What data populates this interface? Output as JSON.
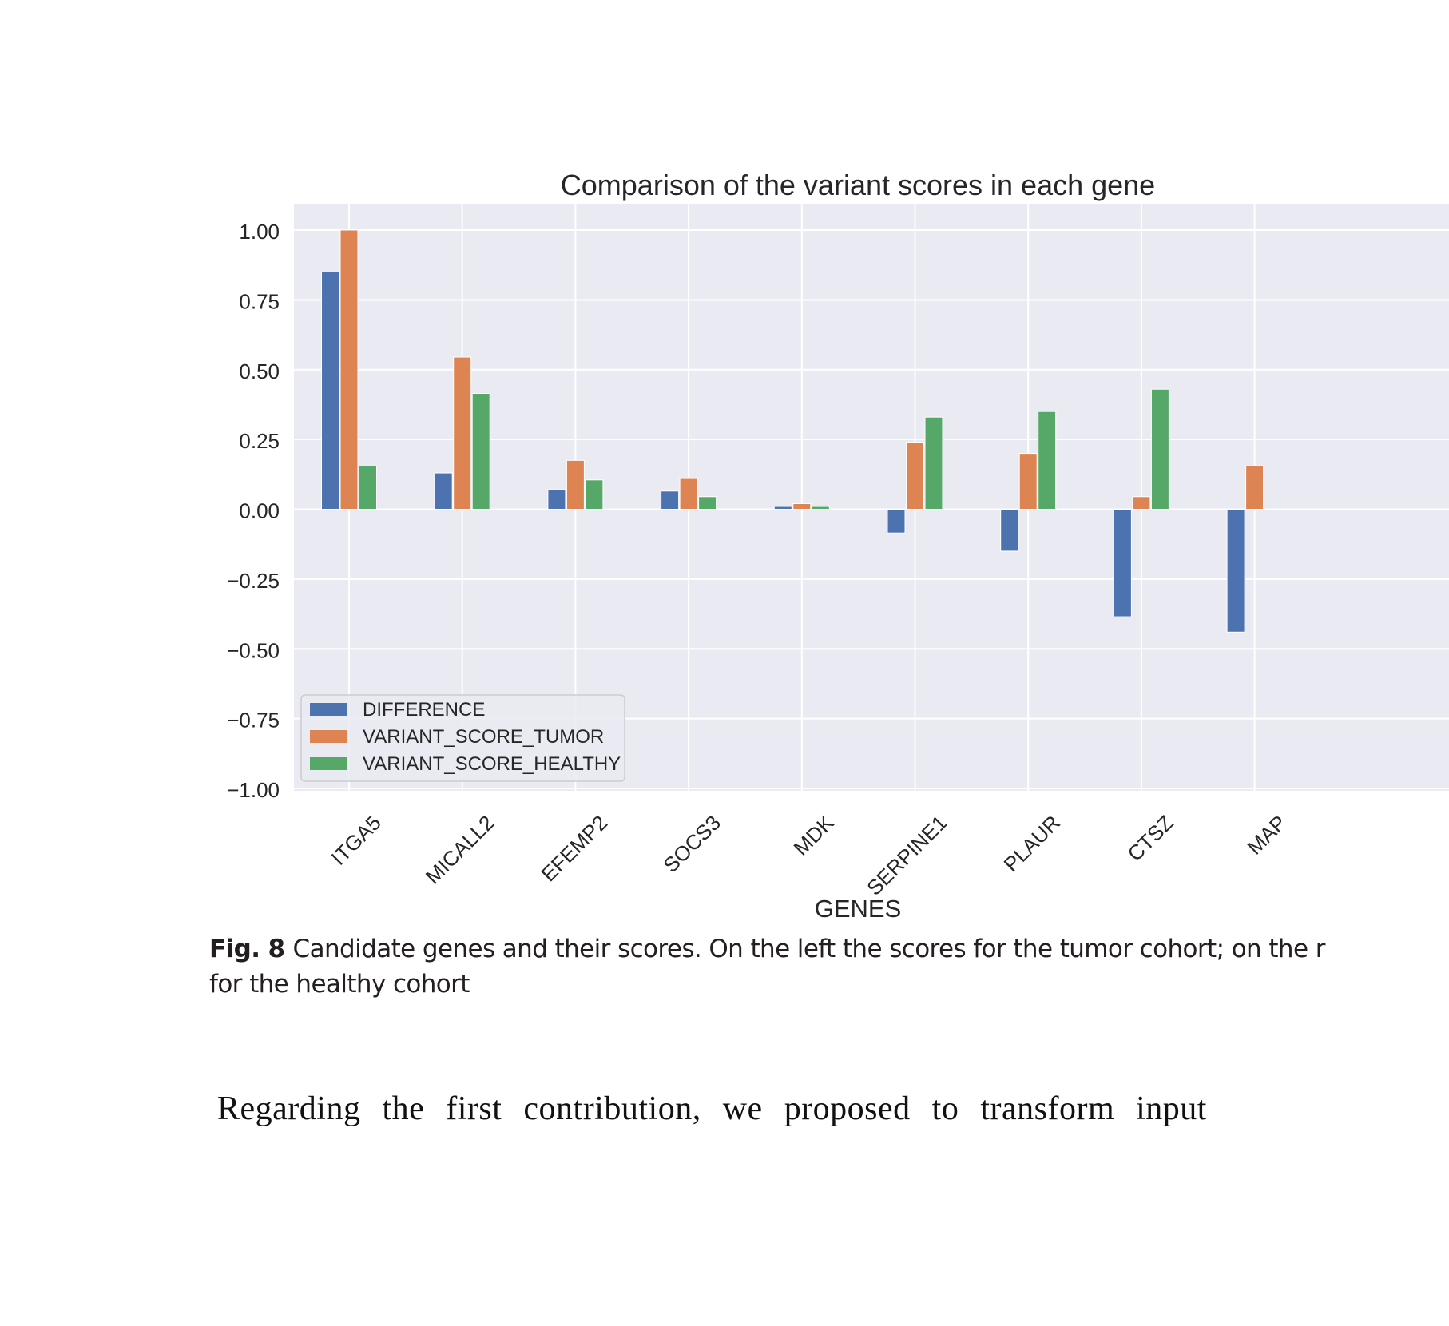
{
  "chart_data": {
    "type": "bar",
    "title": "Comparison of the variant scores in each gene",
    "xlabel": "GENES",
    "ylabel": "",
    "ylim": [
      -1.0,
      1.0
    ],
    "yticks": [
      1.0,
      0.75,
      0.5,
      0.25,
      0.0,
      -0.25,
      -0.5,
      -0.75,
      -1.0
    ],
    "ytick_labels": [
      "1.00",
      "0.75",
      "0.50",
      "0.25",
      "0.00",
      "−0.25",
      "−0.50",
      "−0.75",
      "−1.00"
    ],
    "categories": [
      "ITGA5",
      "MICALL2",
      "EFEMP2",
      "SOCS3",
      "MDK",
      "SERPINE1",
      "PLAUR",
      "CTSZ",
      "MAP"
    ],
    "grid": true,
    "legend_position": "bottom-left",
    "series": [
      {
        "name": "DIFFERENCE",
        "color": "#4c72b0",
        "values": [
          0.85,
          0.13,
          0.07,
          0.065,
          0.01,
          -0.085,
          -0.15,
          -0.385,
          -0.44
        ]
      },
      {
        "name": "VARIANT_SCORE_TUMOR",
        "color": "#dd8452",
        "values": [
          1.0,
          0.545,
          0.175,
          0.11,
          0.02,
          0.24,
          0.2,
          0.045,
          0.155
        ]
      },
      {
        "name": "VARIANT_SCORE_HEALTHY",
        "color": "#55a868",
        "values": [
          0.155,
          0.415,
          0.105,
          0.045,
          0.01,
          0.33,
          0.35,
          0.43,
          null
        ]
      }
    ]
  },
  "caption": {
    "label": "Fig. 8",
    "line1": "Candidate genes and their scores. On the left the scores for the tumor cohort; on the r",
    "line2": "for the healthy cohort"
  },
  "body_text": "Regarding the first contribution, we proposed to transform input"
}
